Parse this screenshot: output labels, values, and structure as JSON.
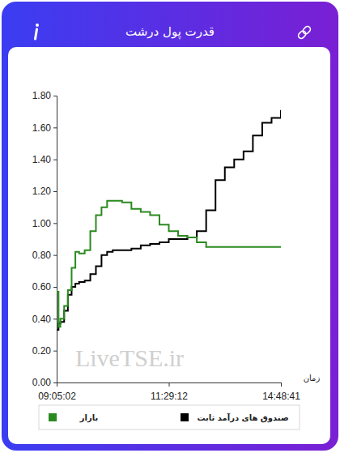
{
  "chart_data": {
    "type": "line",
    "title": "قدرت پول درشت",
    "x_label": "زمان",
    "annotations": [
      "LiveTSE.ir"
    ],
    "x": [
      0,
      1,
      2,
      4,
      6,
      8,
      10,
      12,
      15,
      18,
      21,
      24,
      27,
      30,
      35,
      40,
      45,
      50,
      55,
      60,
      65,
      70,
      75,
      80,
      85,
      90,
      95,
      100,
      105,
      110,
      115,
      120
    ],
    "xlim": [
      0,
      120
    ],
    "xticks": [
      {
        "value": 0,
        "label": "09:05:02"
      },
      {
        "value": 60,
        "label": "11:29:12"
      },
      {
        "value": 120,
        "label": "14:48:41"
      }
    ],
    "ylim": [
      0,
      1.8
    ],
    "yticks": [
      {
        "value": 0,
        "label": "0.00"
      },
      {
        "value": 0.2,
        "label": "0.20"
      },
      {
        "value": 0.4,
        "label": "0.40"
      },
      {
        "value": 0.6,
        "label": "0.60"
      },
      {
        "value": 0.8,
        "label": "0.80"
      },
      {
        "value": 1,
        "label": "1.00"
      },
      {
        "value": 1.2,
        "label": "1.20"
      },
      {
        "value": 1.4,
        "label": "1.40"
      },
      {
        "value": 1.6,
        "label": "1.60"
      },
      {
        "value": 1.8,
        "label": "1.80"
      }
    ],
    "grid": false,
    "legend": "bottom",
    "line_style": "step",
    "series": [
      {
        "name": "بازار",
        "color": "#2a8a1f",
        "values": [
          0.57,
          0.35,
          0.4,
          0.48,
          0.58,
          0.72,
          0.82,
          0.81,
          0.83,
          0.95,
          1.05,
          1.1,
          1.14,
          1.14,
          1.13,
          1.09,
          1.07,
          1.05,
          0.99,
          0.95,
          0.92,
          0.91,
          0.88,
          0.85,
          0.85,
          0.85,
          0.85,
          0.85,
          0.85,
          0.85,
          0.85,
          0.85
        ]
      },
      {
        "name": "صندوق های درآمد ثابت",
        "color": "#000000",
        "values": [
          0.33,
          0.37,
          0.38,
          0.45,
          0.55,
          0.6,
          0.62,
          0.63,
          0.64,
          0.68,
          0.73,
          0.8,
          0.82,
          0.83,
          0.83,
          0.84,
          0.86,
          0.87,
          0.88,
          0.9,
          0.9,
          0.91,
          0.95,
          1.08,
          1.27,
          1.35,
          1.4,
          1.45,
          1.55,
          1.63,
          1.66,
          1.71
        ]
      }
    ]
  }
}
